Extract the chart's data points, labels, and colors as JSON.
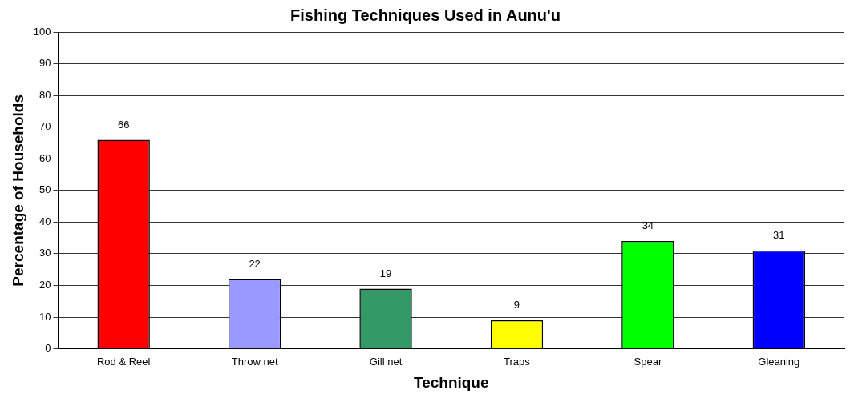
{
  "chart_data": {
    "type": "bar",
    "title": "Fishing Techniques Used in Aunu'u",
    "xlabel": "Technique",
    "ylabel": "Percentage of Households",
    "categories": [
      "Rod & Reel",
      "Throw net",
      "Gill net",
      "Traps",
      "Spear",
      "Gleaning"
    ],
    "values": [
      66,
      22,
      19,
      9,
      34,
      31
    ],
    "colors": [
      "#ff0000",
      "#9999ff",
      "#339966",
      "#ffff00",
      "#00ff00",
      "#0000ff"
    ],
    "ylim": [
      0,
      100
    ],
    "yticks": [
      0,
      10,
      20,
      30,
      40,
      50,
      60,
      70,
      80,
      90,
      100
    ],
    "grid": "y",
    "legend": false,
    "data_labels": true
  }
}
